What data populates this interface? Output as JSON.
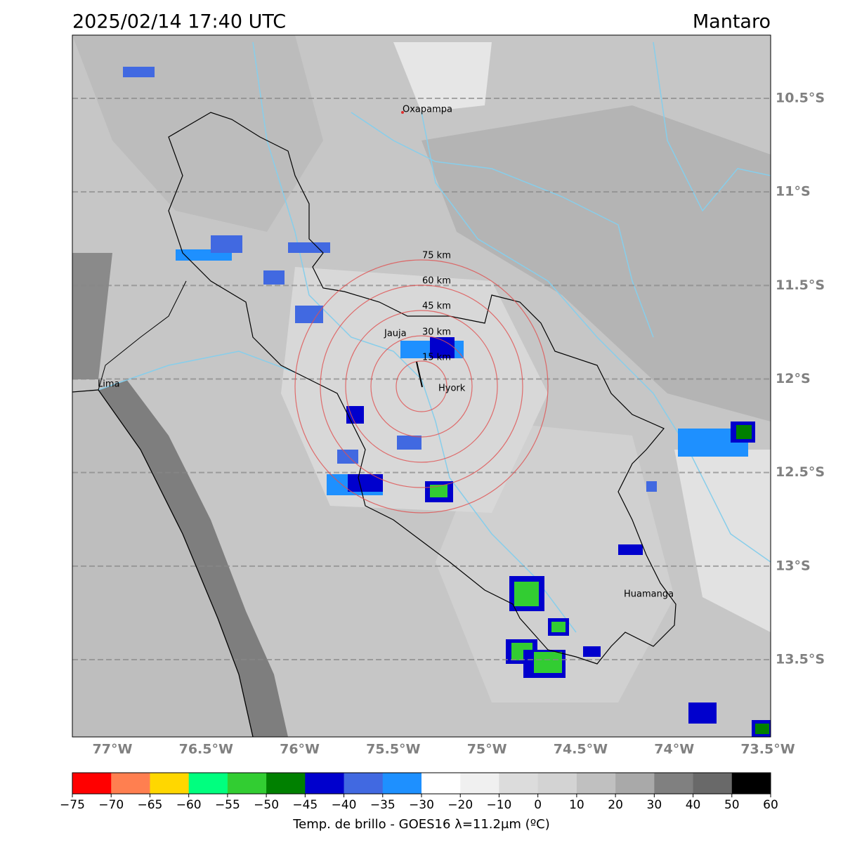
{
  "header": {
    "title": "2025/02/14 17:40 UTC",
    "region": "Mantaro"
  },
  "grid": {
    "lat": [
      {
        "value": -10.5,
        "label": "10.5°S"
      },
      {
        "value": -11,
        "label": "11°S"
      },
      {
        "value": -11.5,
        "label": "11.5°S"
      },
      {
        "value": -12,
        "label": "12°S"
      },
      {
        "value": -12.5,
        "label": "12.5°S"
      },
      {
        "value": -13,
        "label": "13°S"
      },
      {
        "value": -13.5,
        "label": "13.5°S"
      }
    ],
    "lon": [
      {
        "value": -77,
        "label": "77°W"
      },
      {
        "value": -76.5,
        "label": "76.5°W"
      },
      {
        "value": -76,
        "label": "76°W"
      },
      {
        "value": -75.5,
        "label": "75.5°W"
      },
      {
        "value": -75,
        "label": "75°W"
      },
      {
        "value": -74.5,
        "label": "74.5°W"
      },
      {
        "value": -74,
        "label": "74°W"
      },
      {
        "value": -73.5,
        "label": "73.5°W"
      }
    ]
  },
  "cities": [
    "Oxapampa",
    "Jauja",
    "Hyork",
    "Lima",
    "Huamanga"
  ],
  "rings": [
    "15 km",
    "30 km",
    "45 km",
    "60 km",
    "75 km"
  ],
  "colorbar": {
    "label": "Temp. de brillo - GOES16 λ=11.2μm (ºC)",
    "colors": [
      "#ff0000",
      "#ff7f50",
      "#ffd700",
      "#00ff7f",
      "#32cd32",
      "#008000",
      "#0000cd",
      "#4169e1",
      "#1e90ff",
      "#ffffff",
      "#f0f0f0",
      "#dcdcdc",
      "#d3d3d3",
      "#c0c0c0",
      "#a9a9a9",
      "#808080",
      "#696969",
      "#000000"
    ],
    "ticks": [
      {
        "value": -75,
        "label": "−75"
      },
      {
        "value": -70,
        "label": "−70"
      },
      {
        "value": -65,
        "label": "−65"
      },
      {
        "value": -60,
        "label": "−60"
      },
      {
        "value": -55,
        "label": "−55"
      },
      {
        "value": -50,
        "label": "−50"
      },
      {
        "value": -45,
        "label": "−45"
      },
      {
        "value": -40,
        "label": "−40"
      },
      {
        "value": -35,
        "label": "−35"
      },
      {
        "value": -30,
        "label": "−30"
      },
      {
        "value": -20,
        "label": "−20"
      },
      {
        "value": -10,
        "label": "−10"
      },
      0,
      10,
      20,
      30,
      40,
      50,
      60
    ]
  }
}
